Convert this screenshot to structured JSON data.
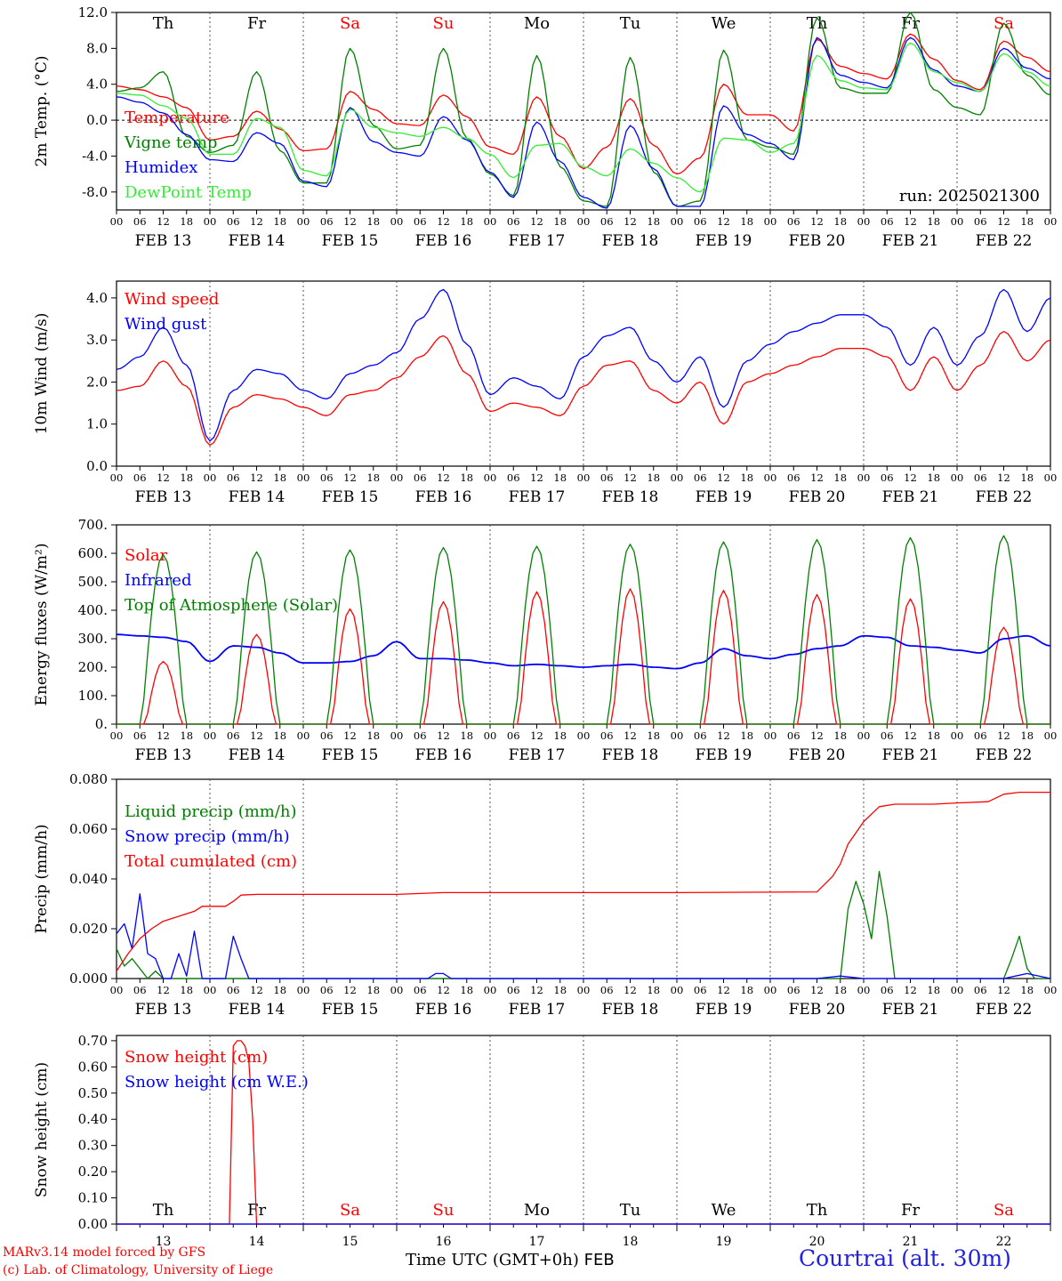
{
  "chart_data": [
    {
      "type": "line",
      "id": "temp",
      "ylabel": "2m Temp. (°C)",
      "ylim": [
        -10,
        12
      ],
      "yticks": [
        -8,
        -4,
        0,
        4,
        8,
        12
      ],
      "ytick_labels": [
        "-8.0",
        "-4.0",
        "0.0",
        "4.0",
        "8.0",
        "12.0"
      ],
      "zero_line": true,
      "annotation": "run: 2025021300",
      "day_labels_top": true,
      "x_hours": [
        0,
        6,
        12,
        18,
        24,
        30,
        36,
        42,
        48,
        54,
        60,
        66,
        72,
        78,
        84,
        90,
        96,
        102,
        108,
        114,
        120,
        126,
        132,
        138,
        144,
        150,
        156,
        162,
        168,
        174,
        180,
        186,
        192,
        198,
        204,
        210,
        216,
        222,
        228,
        234,
        240
      ],
      "series": [
        {
          "name": "Temperature",
          "color": "#ff0000",
          "values": [
            3.8,
            3.4,
            2.6,
            1.4,
            -2.2,
            -1.8,
            1.0,
            -1.0,
            -3.4,
            -3.2,
            3.2,
            1.2,
            -0.4,
            -0.6,
            2.8,
            0.4,
            -3.0,
            -3.8,
            2.6,
            -1.8,
            -5.4,
            -3.0,
            2.4,
            -2.8,
            -6.0,
            -4.2,
            4.0,
            0.6,
            0.6,
            -1.2,
            9.0,
            6.0,
            5.2,
            4.6,
            9.6,
            6.8,
            4.4,
            3.4,
            8.8,
            7.0,
            5.4
          ]
        },
        {
          "name": "Vigne temp",
          "color": "#008000",
          "values": [
            3.2,
            3.6,
            5.4,
            -1.8,
            -3.6,
            -2.8,
            5.4,
            -3.4,
            -7.0,
            -7.0,
            8.0,
            -0.6,
            -3.2,
            -2.8,
            8.0,
            -2.0,
            -6.0,
            -8.4,
            7.2,
            -5.2,
            -9.0,
            -9.6,
            7.0,
            -5.8,
            -9.6,
            -9.0,
            7.8,
            -2.2,
            -3.0,
            -3.8,
            11.4,
            3.6,
            3.0,
            3.0,
            12.0,
            3.4,
            1.4,
            0.6,
            10.8,
            5.0,
            2.8
          ]
        },
        {
          "name": "Humidex",
          "color": "#0000ff",
          "values": [
            2.6,
            2.0,
            0.8,
            -1.6,
            -4.4,
            -4.6,
            -1.4,
            -2.6,
            -6.8,
            -7.4,
            1.4,
            -2.4,
            -3.6,
            -4.0,
            0.4,
            -2.2,
            -5.8,
            -8.6,
            -0.2,
            -4.6,
            -8.6,
            -9.8,
            -0.6,
            -5.4,
            -9.6,
            -9.6,
            1.6,
            -1.6,
            -2.6,
            -4.4,
            9.2,
            5.0,
            4.2,
            3.6,
            9.2,
            5.6,
            3.8,
            3.2,
            8.0,
            5.8,
            4.6
          ]
        },
        {
          "name": "DewPoint Temp",
          "color": "#33ee33",
          "values": [
            3.0,
            2.8,
            1.6,
            0.2,
            -3.8,
            -3.8,
            0.2,
            -0.8,
            -5.6,
            -6.2,
            1.2,
            -0.8,
            -1.4,
            -1.8,
            -0.8,
            -2.0,
            -3.8,
            -6.4,
            -2.8,
            -2.6,
            -5.2,
            -6.2,
            -3.2,
            -4.8,
            -6.4,
            -8.0,
            -2.0,
            -2.2,
            -3.6,
            -2.6,
            7.2,
            4.4,
            3.6,
            3.4,
            8.6,
            5.4,
            4.2,
            3.2,
            7.4,
            5.4,
            3.8
          ]
        }
      ]
    },
    {
      "type": "line",
      "id": "wind",
      "ylabel": "10m Wind (m/s)",
      "ylim": [
        0,
        4.4
      ],
      "yticks": [
        0,
        1,
        2,
        3,
        4
      ],
      "ytick_labels": [
        "0.0",
        "1.0",
        "2.0",
        "3.0",
        "4.0"
      ],
      "x_hours": [
        0,
        6,
        12,
        18,
        24,
        30,
        36,
        42,
        48,
        54,
        60,
        66,
        72,
        78,
        84,
        90,
        96,
        102,
        108,
        114,
        120,
        126,
        132,
        138,
        144,
        150,
        156,
        162,
        168,
        174,
        180,
        186,
        192,
        198,
        204,
        210,
        216,
        222,
        228,
        234,
        240
      ],
      "series": [
        {
          "name": "Wind speed",
          "color": "#ff0000",
          "values": [
            1.8,
            1.9,
            2.5,
            1.9,
            0.5,
            1.4,
            1.7,
            1.6,
            1.4,
            1.2,
            1.7,
            1.8,
            2.1,
            2.6,
            3.1,
            2.2,
            1.3,
            1.5,
            1.4,
            1.2,
            1.9,
            2.4,
            2.5,
            1.8,
            1.5,
            2.0,
            1.0,
            2.0,
            2.2,
            2.4,
            2.6,
            2.8,
            2.8,
            2.6,
            1.8,
            2.6,
            1.8,
            2.4,
            3.2,
            2.5,
            3.0
          ]
        },
        {
          "name": "Wind gust",
          "color": "#0000ff",
          "values": [
            2.3,
            2.6,
            3.3,
            2.4,
            0.6,
            1.8,
            2.3,
            2.2,
            1.8,
            1.6,
            2.2,
            2.4,
            2.7,
            3.5,
            4.2,
            2.9,
            1.7,
            2.1,
            1.9,
            1.6,
            2.6,
            3.1,
            3.3,
            2.5,
            2.0,
            2.6,
            1.4,
            2.5,
            2.9,
            3.2,
            3.4,
            3.6,
            3.6,
            3.3,
            2.4,
            3.3,
            2.4,
            3.1,
            4.2,
            3.2,
            4.0
          ]
        }
      ]
    },
    {
      "type": "line",
      "id": "energy",
      "ylabel": "Energy fluxes (W/m²)",
      "ylim": [
        0,
        700
      ],
      "yticks": [
        0,
        100,
        200,
        300,
        400,
        500,
        600,
        700
      ],
      "ytick_labels": [
        "0.",
        "100.",
        "200.",
        "300.",
        "400.",
        "500.",
        "600.",
        "700."
      ],
      "solar_peaks": [
        220,
        315,
        405,
        430,
        465,
        475,
        470,
        455,
        440,
        340
      ],
      "toa_peaks": [
        595,
        605,
        612,
        620,
        625,
        632,
        640,
        648,
        655,
        662
      ],
      "x_hours": [
        0,
        6,
        12,
        18,
        24,
        30,
        36,
        42,
        48,
        54,
        60,
        66,
        72,
        78,
        84,
        90,
        96,
        102,
        108,
        114,
        120,
        126,
        132,
        138,
        144,
        150,
        156,
        162,
        168,
        174,
        180,
        186,
        192,
        198,
        204,
        210,
        216,
        222,
        228,
        234,
        240
      ],
      "series": [
        {
          "name": "Solar",
          "color": "#ff0000"
        },
        {
          "name": "Infrared",
          "color": "#0000ff",
          "values": [
            315,
            310,
            305,
            290,
            220,
            275,
            270,
            250,
            215,
            215,
            220,
            240,
            290,
            230,
            230,
            225,
            215,
            205,
            210,
            205,
            200,
            205,
            210,
            200,
            195,
            215,
            265,
            240,
            230,
            245,
            265,
            275,
            310,
            305,
            275,
            270,
            260,
            250,
            300,
            310,
            275
          ]
        },
        {
          "name": "Top of Atmosphere (Solar)",
          "color": "#008000"
        }
      ]
    },
    {
      "type": "line",
      "id": "precip",
      "ylabel": "Precip (mm/h)",
      "ylim": [
        0,
        0.08
      ],
      "yticks": [
        0,
        0.02,
        0.04,
        0.06,
        0.08
      ],
      "ytick_labels": [
        "0.000",
        "0.020",
        "0.040",
        "0.060",
        "0.080"
      ],
      "series": [
        {
          "name": "Liquid precip (mm/h)",
          "color": "#008000",
          "x": [
            0,
            2,
            4,
            6,
            8,
            10,
            12,
            14,
            16,
            18,
            20,
            22,
            24,
            26,
            28,
            30,
            32,
            34,
            36,
            38,
            40,
            42,
            44,
            48,
            96,
            180,
            186,
            188,
            190,
            192,
            194,
            196,
            198,
            200,
            202,
            204,
            206,
            208,
            210,
            212,
            216,
            228,
            230,
            232,
            234,
            236,
            238,
            240
          ],
          "values": [
            0.012,
            0.005,
            0.008,
            0.004,
            0.0,
            0.003,
            0.0,
            0.0,
            0.0,
            0.0,
            0.0,
            0.0,
            0.0,
            0.0,
            0.0,
            0.0,
            0.0,
            0.0,
            0.0,
            0.0,
            0.0,
            0.0,
            0.0,
            0.0,
            0.0,
            0.0,
            0.0,
            0.028,
            0.039,
            0.03,
            0.016,
            0.043,
            0.025,
            0.0,
            0.0,
            0.0,
            0.0,
            0.0,
            0.0,
            0.0,
            0.0,
            0.0,
            0.008,
            0.017,
            0.004,
            0.0,
            0.0,
            0.0
          ]
        },
        {
          "name": "Snow precip (mm/h)",
          "color": "#0000ff",
          "x": [
            0,
            2,
            4,
            6,
            8,
            10,
            12,
            14,
            16,
            18,
            20,
            22,
            24,
            26,
            28,
            30,
            32,
            34,
            36,
            38,
            40,
            42,
            48,
            72,
            80,
            82,
            84,
            86,
            96,
            180,
            186,
            192,
            200,
            216,
            228,
            234,
            240
          ],
          "values": [
            0.018,
            0.022,
            0.012,
            0.034,
            0.01,
            0.008,
            0.0,
            0.0,
            0.01,
            0.001,
            0.019,
            0.0,
            0.0,
            0.0,
            0.0,
            0.017,
            0.008,
            0.0,
            0.0,
            0.0,
            0.0,
            0.0,
            0.0,
            0.0,
            0.0,
            0.002,
            0.002,
            0.0,
            0.0,
            0.0,
            0.001,
            0.0,
            0.0,
            0.0,
            0.0,
            0.002,
            0.0
          ]
        },
        {
          "name": "Total cumulated (cm)",
          "color": "#ff0000",
          "x": [
            0,
            3,
            6,
            9,
            12,
            16,
            20,
            22,
            24,
            28,
            30,
            32,
            36,
            48,
            72,
            84,
            96,
            120,
            144,
            180,
            184,
            186,
            188,
            192,
            196,
            200,
            204,
            210,
            216,
            224,
            228,
            232,
            240
          ],
          "values": [
            0.003,
            0.01,
            0.016,
            0.02,
            0.023,
            0.025,
            0.027,
            0.029,
            0.029,
            0.029,
            0.031,
            0.0335,
            0.0338,
            0.0338,
            0.0338,
            0.0345,
            0.0345,
            0.0345,
            0.0345,
            0.0348,
            0.041,
            0.046,
            0.054,
            0.063,
            0.069,
            0.07,
            0.07,
            0.07,
            0.0705,
            0.071,
            0.074,
            0.0748,
            0.0748
          ]
        }
      ]
    },
    {
      "type": "line",
      "id": "snow",
      "ylabel": "Snow height (cm)",
      "ylim": [
        0,
        0.72
      ],
      "yticks": [
        0,
        0.1,
        0.2,
        0.3,
        0.4,
        0.5,
        0.6,
        0.7
      ],
      "ytick_labels": [
        "0.00",
        "0.10",
        "0.20",
        "0.30",
        "0.40",
        "0.50",
        "0.60",
        "0.70"
      ],
      "series": [
        {
          "name": "Snow height (cm)",
          "color": "#ff0000",
          "x": [
            0,
            29,
            30,
            31,
            32,
            33,
            34,
            35,
            36,
            240
          ],
          "values": [
            0,
            0,
            0.68,
            0.7,
            0.7,
            0.68,
            0.62,
            0.4,
            0,
            0
          ]
        },
        {
          "name": "Snow height (cm W.E.)",
          "color": "#0000ff",
          "x": [
            0,
            240
          ],
          "values": [
            0,
            0
          ]
        }
      ]
    }
  ],
  "x_axis": {
    "hour_ticks": [
      "00",
      "06",
      "12",
      "18"
    ],
    "dates": [
      "FEB 13",
      "FEB 14",
      "FEB 15",
      "FEB 16",
      "FEB 17",
      "FEB 18",
      "FEB 19",
      "FEB 20",
      "FEB 21",
      "FEB 22"
    ],
    "days": [
      "Th",
      "Fr",
      "Sa",
      "Su",
      "Mo",
      "Tu",
      "We",
      "Th",
      "Fr",
      "Sa"
    ],
    "weekend_days": [
      2,
      3,
      9
    ],
    "day_numbers": [
      "13",
      "14",
      "15",
      "16",
      "17",
      "18",
      "19",
      "20",
      "21",
      "22"
    ],
    "xlabel": "Time UTC (GMT+0h)",
    "xlabel_suffix": "FEB"
  },
  "footer": {
    "credit_line1": "MARv3.14 model forced by GFS",
    "credit_line2": "(c) Lab. of Climatology, University of Liege",
    "station": "Courtrai (alt. 30m)"
  }
}
